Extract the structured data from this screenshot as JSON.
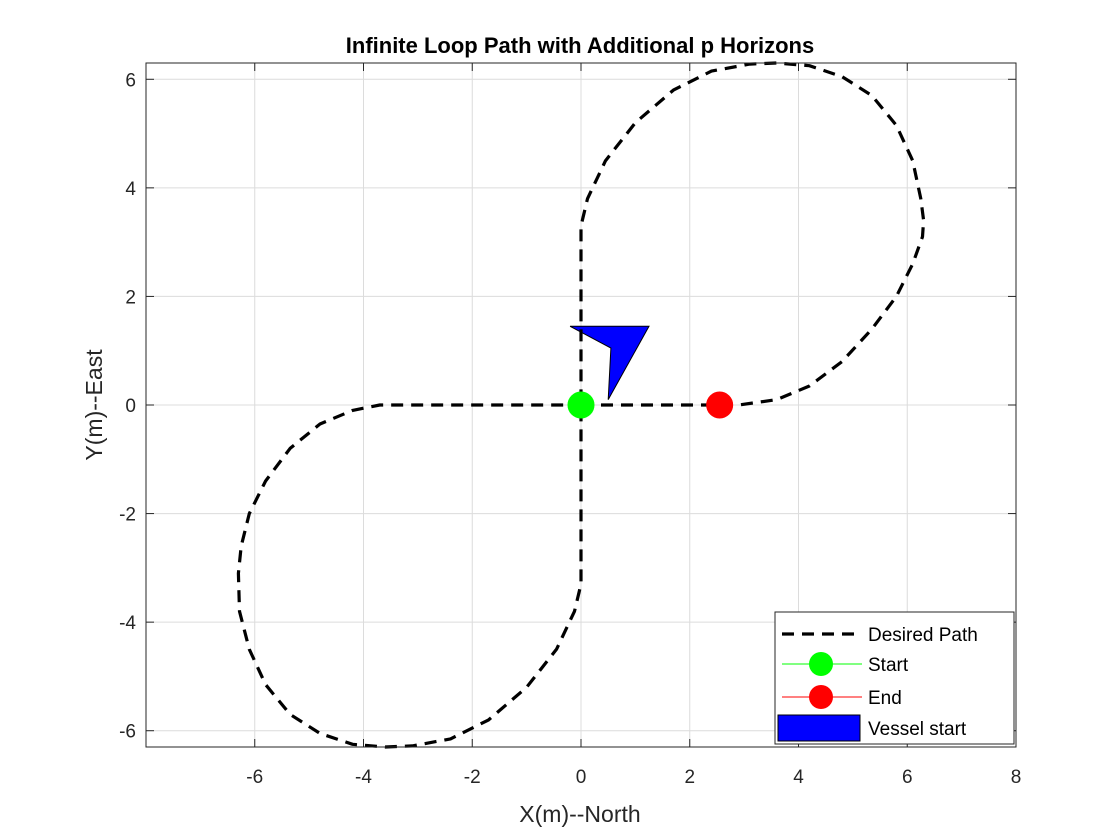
{
  "chart_data": {
    "type": "line",
    "title": "Infinite Loop Path with Additional p Horizons",
    "xlabel": "X(m)--North",
    "ylabel": "Y(m)--East",
    "xlim": [
      -8,
      8
    ],
    "ylim": [
      -6.3,
      6.3
    ],
    "xticks": [
      -6,
      -4,
      -2,
      0,
      2,
      4,
      6,
      8
    ],
    "xtick_labels": [
      "-6",
      "-4",
      "-2",
      "0",
      "2",
      "4",
      "6",
      "8"
    ],
    "yticks": [
      -6,
      -4,
      -2,
      0,
      2,
      4,
      6
    ],
    "ytick_labels": [
      "-6",
      "-4",
      "-2",
      "0",
      "2",
      "4",
      "6"
    ],
    "grid": true,
    "legend_position": "bottom-right",
    "legend": [
      {
        "label": "Desired Path",
        "style": "dashed-line",
        "color": "#000000"
      },
      {
        "label": "Start",
        "style": "marker-line",
        "color": "#00ff00"
      },
      {
        "label": "End",
        "style": "marker-line",
        "color": "#ff0000"
      },
      {
        "label": "Vessel start",
        "style": "patch",
        "color": "#0000ff"
      }
    ],
    "series": [
      {
        "name": "Desired Path",
        "color": "#000000",
        "style": "dashed",
        "x": [
          0.0,
          0.8,
          1.6,
          2.3,
          2.9,
          3.6,
          4.2,
          4.8,
          5.35,
          5.8,
          6.1,
          6.28,
          6.3,
          6.25,
          6.1,
          5.8,
          5.35,
          4.8,
          4.2,
          3.6,
          3.1,
          2.4,
          1.7,
          1.0,
          0.45,
          0.12,
          0.0,
          0.0,
          0.0,
          0.0,
          0.0,
          -0.12,
          -0.45,
          -1.0,
          -1.7,
          -2.4,
          -3.1,
          -3.6,
          -4.2,
          -4.8,
          -5.35,
          -5.8,
          -6.1,
          -6.28,
          -6.3,
          -6.25,
          -6.1,
          -5.8,
          -5.35,
          -4.8,
          -4.2,
          -3.7,
          -3.0,
          -2.0,
          -1.0,
          0.0
        ],
        "y": [
          0.0,
          0.0,
          0.0,
          0.0,
          0.0,
          0.1,
          0.35,
          0.8,
          1.4,
          2.0,
          2.6,
          3.1,
          3.4,
          3.8,
          4.5,
          5.15,
          5.7,
          6.05,
          6.25,
          6.3,
          6.28,
          6.15,
          5.8,
          5.2,
          4.5,
          3.8,
          3.3,
          2.0,
          0.0,
          -2.0,
          -3.3,
          -3.8,
          -4.5,
          -5.2,
          -5.8,
          -6.15,
          -6.28,
          -6.3,
          -6.25,
          -6.05,
          -5.7,
          -5.15,
          -4.5,
          -3.8,
          -3.1,
          -2.6,
          -2.0,
          -1.4,
          -0.8,
          -0.35,
          -0.1,
          0.0,
          0.0,
          0.0,
          0.0,
          0.0
        ]
      }
    ],
    "markers": [
      {
        "name": "Start",
        "x": 0.0,
        "y": 0.0,
        "color": "#00ff00"
      },
      {
        "name": "End",
        "x": 2.55,
        "y": 0.0,
        "color": "#ff0000"
      }
    ],
    "vessel_start": {
      "name": "Vessel start",
      "color": "#0000ff",
      "polygon_x": [
        -0.2,
        1.25,
        0.5,
        0.55
      ],
      "polygon_y": [
        1.45,
        1.45,
        0.1,
        1.05
      ]
    }
  }
}
